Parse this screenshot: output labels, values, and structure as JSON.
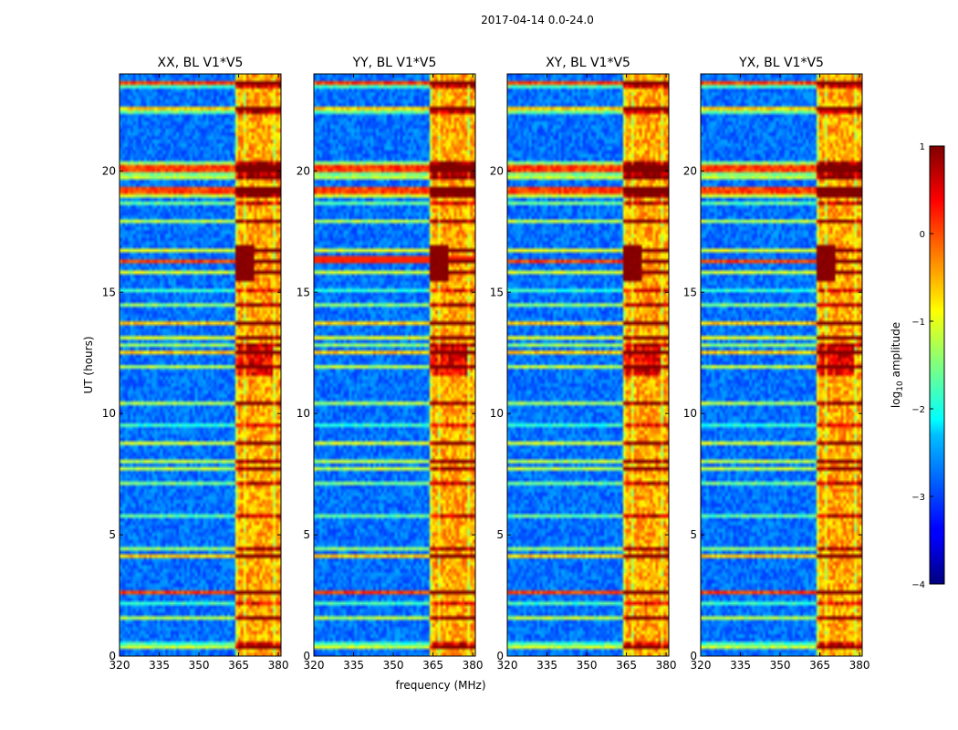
{
  "suptitle": "2017-04-14 0.0-24.0",
  "chart_data": {
    "type": "heatmap",
    "xlabel": "frequency (MHz)",
    "ylabel": "UT (hours)",
    "xlim": [
      320,
      381
    ],
    "ylim": [
      0,
      24
    ],
    "xticks": [
      320,
      335,
      350,
      365,
      380
    ],
    "xtick_labels": [
      "320",
      "335",
      "350",
      "365",
      "380"
    ],
    "yticks": [
      0,
      5,
      10,
      15,
      20
    ],
    "ytick_labels": [
      "0",
      "5",
      "10",
      "15",
      "20"
    ],
    "panels": [
      {
        "title": "XX, BL V1*V5",
        "pol": "XX"
      },
      {
        "title": "YY, BL V1*V5",
        "pol": "YY"
      },
      {
        "title": "XY, BL V1*V5",
        "pol": "XY"
      },
      {
        "title": "YX, BL V1*V5",
        "pol": "YX"
      }
    ],
    "colorbar": {
      "label": "log10 amplitude",
      "label_parts": {
        "pre": "log",
        "sub": "10",
        "post": " amplitude"
      },
      "range": [
        -4,
        1
      ],
      "ticks": [
        1,
        0,
        -1,
        -2,
        -3,
        -4
      ],
      "tick_labels": [
        "1",
        "0",
        "−1",
        "−2",
        "−3",
        "−4"
      ],
      "colormap": "jet"
    },
    "features": {
      "rfi_band_mhz": [
        364,
        381
      ],
      "bright_blob_hours": [
        15.5,
        17.0
      ],
      "bright_rows_hours": [
        11.5,
        12.8
      ],
      "strong_horizontal_rfi_hours": [
        2.6,
        19.2,
        20.1,
        23.6,
        16.3
      ]
    }
  }
}
